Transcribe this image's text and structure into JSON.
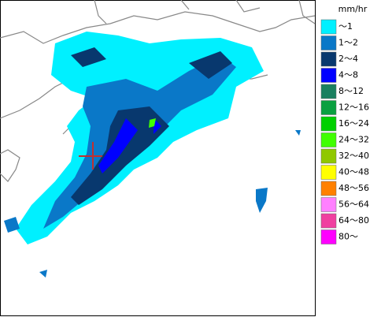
{
  "legend": {
    "unit": "mm/hr",
    "items": [
      {
        "label": "～1",
        "color": "#00f0ff"
      },
      {
        "label": "1～2",
        "color": "#0a78c8"
      },
      {
        "label": "2～4",
        "color": "#08386e"
      },
      {
        "label": "4～8",
        "color": "#0000ff"
      },
      {
        "label": "8～12",
        "color": "#1a8060"
      },
      {
        "label": "12～16",
        "color": "#0aa040"
      },
      {
        "label": "16～24",
        "color": "#00d000"
      },
      {
        "label": "24～32",
        "color": "#40ff00"
      },
      {
        "label": "32～40",
        "color": "#90c800"
      },
      {
        "label": "40～48",
        "color": "#ffff00"
      },
      {
        "label": "48～56",
        "color": "#ff8000"
      },
      {
        "label": "56～64",
        "color": "#ff80ff"
      },
      {
        "label": "64～80",
        "color": "#f040a0"
      },
      {
        "label": "80～",
        "color": "#ff00ff"
      }
    ]
  }
}
